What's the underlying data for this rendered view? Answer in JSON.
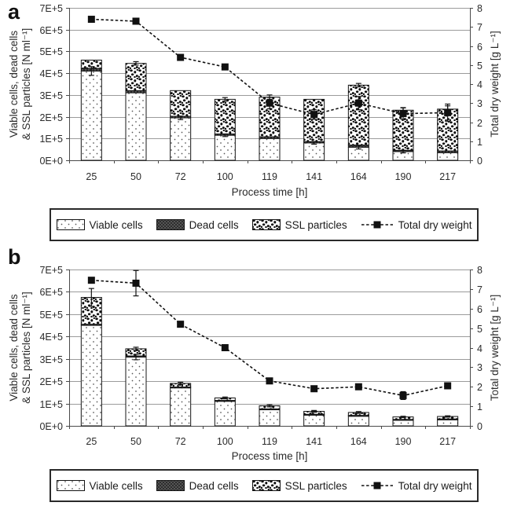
{
  "figure": {
    "background": "#ffffff",
    "accent_color": "#111111",
    "gridline_color": "#9b9b9b",
    "axis_color": "#4a4a4a"
  },
  "legend": {
    "items": [
      {
        "key": "viable",
        "label": "Viable cells"
      },
      {
        "key": "dead",
        "label": "Dead cells"
      },
      {
        "key": "ssl",
        "label": "SSL particles"
      },
      {
        "key": "dw",
        "label": "Total dry weight"
      }
    ]
  },
  "chart_data": [
    {
      "panel_label": "a",
      "type": "bar",
      "subtype": "stacked-bars-with-line",
      "categories": [
        "25",
        "50",
        "72",
        "100",
        "119",
        "141",
        "164",
        "190",
        "217"
      ],
      "xlabel": "Process time [h]",
      "ylabel_left_line1": "Viable cells, dead cells",
      "ylabel_left_line2": "& SSL particles [N ml⁻¹]",
      "ylabel_right": "Total dry weight [g L⁻¹]",
      "left_axis": {
        "min": 0,
        "max": 700000,
        "ticks": [
          "0E+0",
          "1E+5",
          "2E+5",
          "3E+5",
          "4E+5",
          "5E+5",
          "6E+5",
          "7E+5"
        ]
      },
      "right_axis": {
        "min": 0,
        "max": 8,
        "ticks": [
          "0",
          "1",
          "2",
          "3",
          "4",
          "5",
          "6",
          "7",
          "8"
        ]
      },
      "series": [
        {
          "name": "Viable cells",
          "values": [
            410000,
            310000,
            195000,
            115000,
            100000,
            80000,
            60000,
            40000,
            35000
          ],
          "errors": [
            20000,
            0,
            8000,
            6000,
            0,
            6000,
            8000,
            6000,
            0
          ]
        },
        {
          "name": "Dead cells",
          "values": [
            12000,
            10000,
            7000,
            6000,
            8000,
            6000,
            10000,
            6000,
            8000
          ],
          "errors": [
            0,
            0,
            0,
            0,
            0,
            0,
            0,
            0,
            0
          ]
        },
        {
          "name": "SSL particles",
          "values": [
            38000,
            125000,
            118000,
            159000,
            182000,
            194000,
            275000,
            184000,
            192000
          ],
          "errors": [
            0,
            0,
            0,
            0,
            0,
            0,
            0,
            0,
            0
          ]
        }
      ],
      "bar_total_errors": [
        0,
        8000,
        0,
        8000,
        10000,
        0,
        8000,
        12000,
        15000
      ],
      "line_series": {
        "name": "Total dry weight",
        "values": [
          7.4,
          7.3,
          5.4,
          4.9,
          3.0,
          2.4,
          3.0,
          2.45,
          2.5
        ],
        "errors": [
          0,
          0,
          0,
          0,
          0.3,
          0.25,
          0.35,
          0.3,
          0.45
        ]
      },
      "grid": true,
      "legend_position": "bottom"
    },
    {
      "panel_label": "b",
      "type": "bar",
      "subtype": "stacked-bars-with-line",
      "categories": [
        "25",
        "50",
        "72",
        "100",
        "119",
        "141",
        "164",
        "190",
        "217"
      ],
      "xlabel": "Process time [h]",
      "ylabel_left_line1": "Viable cells, dead cells",
      "ylabel_left_line2": "& SSL particles [N ml⁻¹]",
      "ylabel_right": "Total dry weight [g L⁻¹]",
      "left_axis": {
        "min": 0,
        "max": 700000,
        "ticks": [
          "0E+0",
          "1E+5",
          "2E+5",
          "3E+5",
          "4E+5",
          "5E+5",
          "6E+5",
          "7E+5"
        ]
      },
      "right_axis": {
        "min": 0,
        "max": 8,
        "ticks": [
          "0",
          "1",
          "2",
          "3",
          "4",
          "5",
          "6",
          "7",
          "8"
        ]
      },
      "series": [
        {
          "name": "Viable cells",
          "values": [
            450000,
            308000,
            170000,
            110000,
            72000,
            48000,
            43000,
            25000,
            27000
          ],
          "errors": [
            0,
            12000,
            0,
            0,
            0,
            0,
            0,
            0,
            0
          ]
        },
        {
          "name": "Dead cells",
          "values": [
            5000,
            5000,
            4000,
            4000,
            4000,
            4000,
            4000,
            4000,
            4000
          ],
          "errors": [
            0,
            0,
            0,
            0,
            0,
            0,
            0,
            0,
            0
          ]
        },
        {
          "name": "SSL particles",
          "values": [
            120000,
            32000,
            16000,
            11000,
            14000,
            13000,
            13000,
            11000,
            11000
          ],
          "errors": [
            0,
            0,
            0,
            0,
            0,
            0,
            0,
            0,
            0
          ]
        }
      ],
      "bar_total_errors": [
        40000,
        7000,
        5000,
        4000,
        5000,
        4000,
        4000,
        3000,
        3000
      ],
      "line_series": {
        "name": "Total dry weight",
        "values": [
          7.45,
          7.3,
          5.2,
          4.0,
          2.3,
          1.9,
          2.0,
          1.55,
          2.05
        ],
        "errors": [
          0,
          0.65,
          0,
          0,
          0,
          0,
          0,
          0.2,
          0
        ]
      },
      "grid": true,
      "legend_position": "bottom"
    }
  ]
}
